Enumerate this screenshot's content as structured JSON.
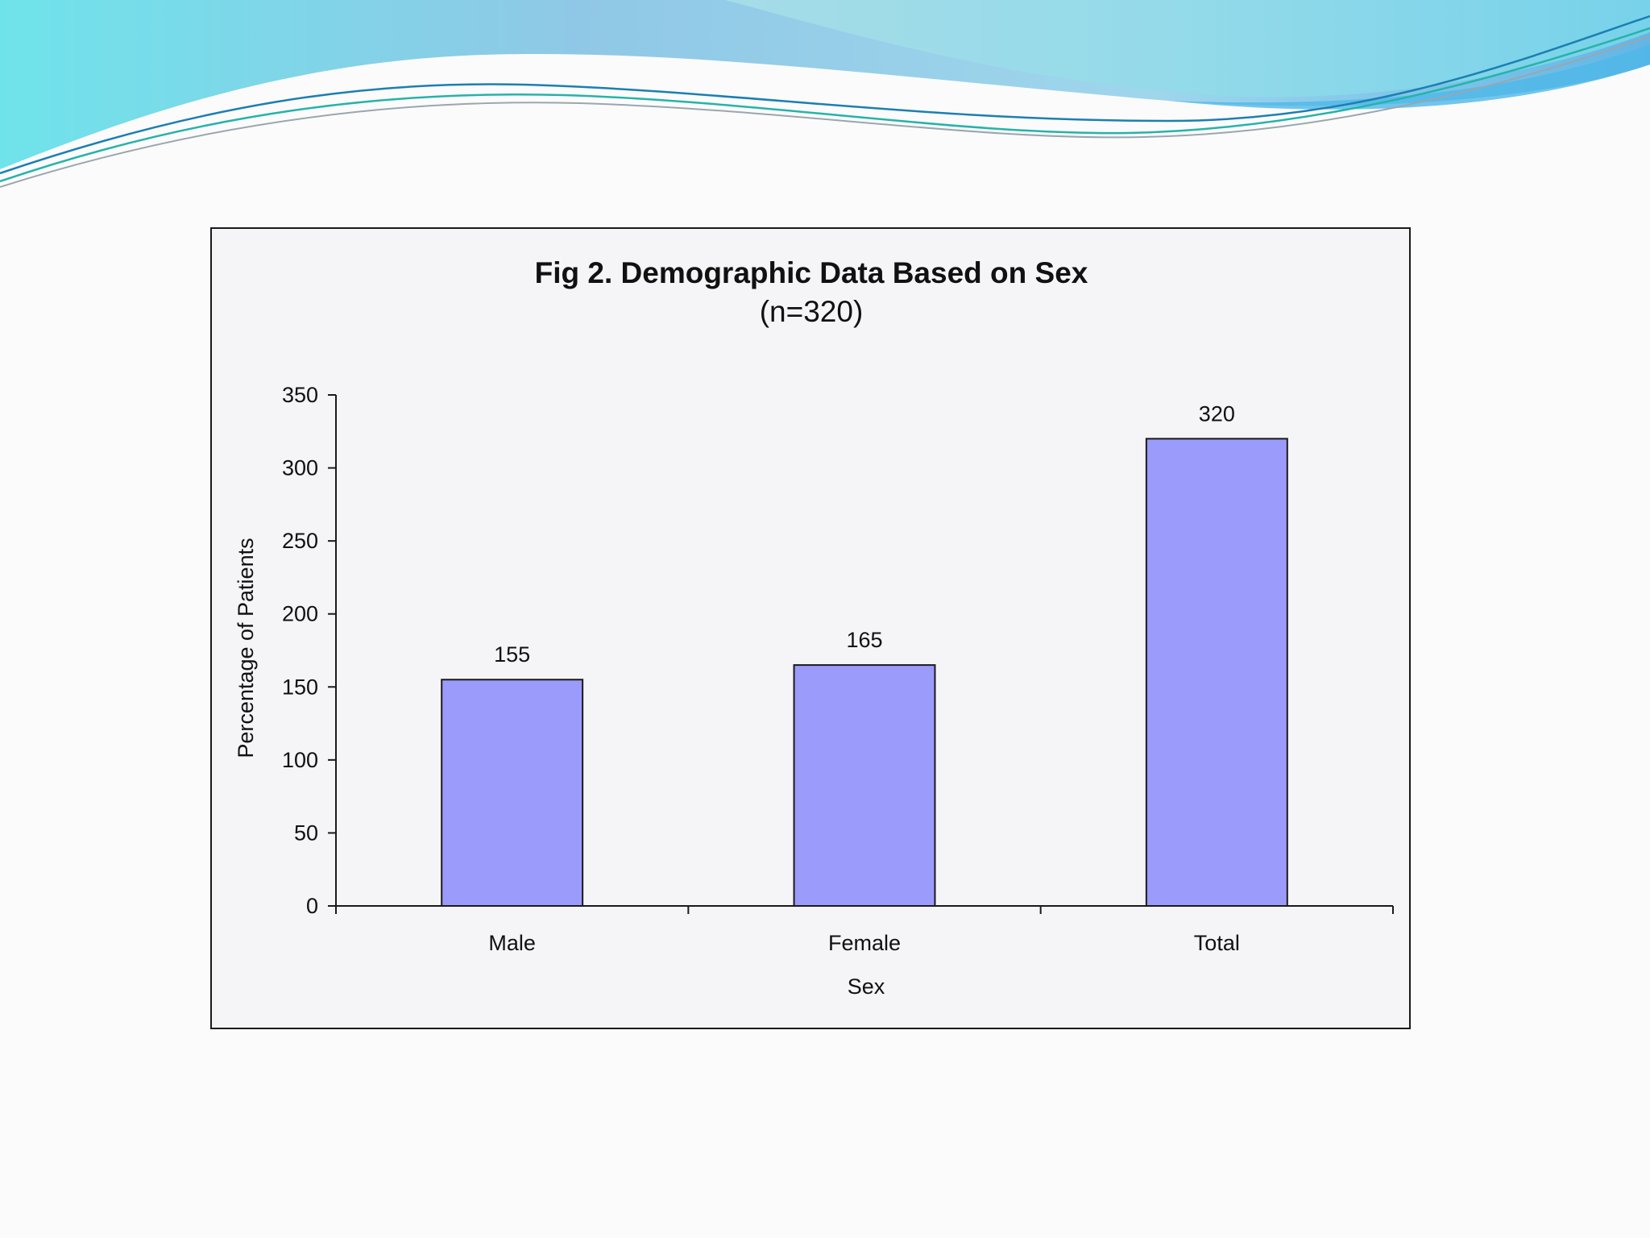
{
  "theme": {
    "wave_light": "#8fd3ea",
    "wave_cyan": "#6fe3ea",
    "wave_teal": "#2aa9a6",
    "wave_blue": "#1f6fa8",
    "bar_fill": "#9b9bfc",
    "bar_stroke": "#1a1a1a"
  },
  "chart_data": {
    "type": "bar",
    "title": "Fig 2. Demographic Data Based on Sex",
    "subtitle": "(n=320)",
    "xlabel": "Sex",
    "ylabel": "Percentage of Patients",
    "categories": [
      "Male",
      "Female",
      "Total"
    ],
    "values": [
      155,
      165,
      320
    ],
    "data_labels": [
      "155",
      "165",
      "320"
    ],
    "ylim": [
      0,
      350
    ],
    "yticks": [
      0,
      50,
      100,
      150,
      200,
      250,
      300,
      350
    ],
    "ytick_labels": [
      "0",
      "50",
      "100",
      "150",
      "200",
      "250",
      "300",
      "350"
    ],
    "grid": false,
    "legend": "none"
  }
}
